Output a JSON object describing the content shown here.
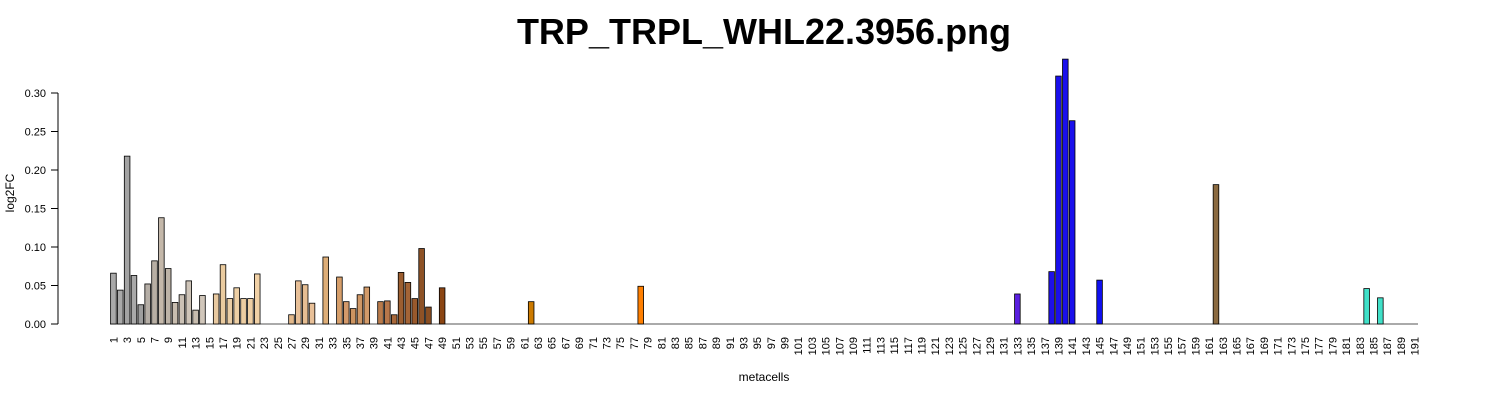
{
  "chart_data": {
    "type": "bar",
    "title": "TRP_TRPL_WHL22.3956.png",
    "xlabel": "metacells",
    "ylabel": "log2FC",
    "ylim": [
      0,
      0.34
    ],
    "yticks": [
      0.0,
      0.05,
      0.1,
      0.15,
      0.2,
      0.25,
      0.3
    ],
    "ytick_labels": [
      "0.00",
      "0.05",
      "0.10",
      "0.15",
      "0.20",
      "0.25",
      "0.30"
    ],
    "grid": false,
    "legend": "none",
    "n_categories": 191,
    "xtick_labels_every": 2,
    "bars": [
      {
        "x": 1,
        "value": 0.066,
        "color": "#A9A9A9"
      },
      {
        "x": 2,
        "value": 0.044,
        "color": "#A9A9A9"
      },
      {
        "x": 3,
        "value": 0.218,
        "color": "#A3A3A3"
      },
      {
        "x": 4,
        "value": 0.063,
        "color": "#A9A9A9"
      },
      {
        "x": 5,
        "value": 0.025,
        "color": "#9E9E9E"
      },
      {
        "x": 6,
        "value": 0.052,
        "color": "#B5AEA6"
      },
      {
        "x": 7,
        "value": 0.082,
        "color": "#B8AFA4"
      },
      {
        "x": 8,
        "value": 0.138,
        "color": "#C4B8AA"
      },
      {
        "x": 9,
        "value": 0.072,
        "color": "#BDB3A7"
      },
      {
        "x": 10,
        "value": 0.028,
        "color": "#C8BDAF"
      },
      {
        "x": 11,
        "value": 0.038,
        "color": "#CBC1B5"
      },
      {
        "x": 12,
        "value": 0.056,
        "color": "#CEC4B8"
      },
      {
        "x": 13,
        "value": 0.018,
        "color": "#C8BDAF"
      },
      {
        "x": 14,
        "value": 0.037,
        "color": "#D0C6BA"
      },
      {
        "x": 16,
        "value": 0.039,
        "color": "#E8C9A0"
      },
      {
        "x": 17,
        "value": 0.077,
        "color": "#EACB9F"
      },
      {
        "x": 18,
        "value": 0.033,
        "color": "#EACDA5"
      },
      {
        "x": 19,
        "value": 0.047,
        "color": "#EDCFA5"
      },
      {
        "x": 20,
        "value": 0.033,
        "color": "#EBCCA1"
      },
      {
        "x": 21,
        "value": 0.033,
        "color": "#EFCFA4"
      },
      {
        "x": 22,
        "value": 0.065,
        "color": "#F1D1A6"
      },
      {
        "x": 27,
        "value": 0.012,
        "color": "#E2B88A"
      },
      {
        "x": 28,
        "value": 0.056,
        "color": "#E8C098"
      },
      {
        "x": 29,
        "value": 0.051,
        "color": "#E5BD92"
      },
      {
        "x": 30,
        "value": 0.027,
        "color": "#E8C098"
      },
      {
        "x": 32,
        "value": 0.087,
        "color": "#DEAE78"
      },
      {
        "x": 34,
        "value": 0.061,
        "color": "#D69E6A"
      },
      {
        "x": 35,
        "value": 0.029,
        "color": "#D3996A"
      },
      {
        "x": 36,
        "value": 0.02,
        "color": "#CD9460"
      },
      {
        "x": 37,
        "value": 0.038,
        "color": "#D09866"
      },
      {
        "x": 38,
        "value": 0.048,
        "color": "#D39B6A"
      },
      {
        "x": 40,
        "value": 0.029,
        "color": "#B97A4A"
      },
      {
        "x": 41,
        "value": 0.03,
        "color": "#B8774A"
      },
      {
        "x": 42,
        "value": 0.012,
        "color": "#A8683A"
      },
      {
        "x": 43,
        "value": 0.067,
        "color": "#9C5E30"
      },
      {
        "x": 44,
        "value": 0.054,
        "color": "#A46436"
      },
      {
        "x": 45,
        "value": 0.033,
        "color": "#99592C"
      },
      {
        "x": 46,
        "value": 0.098,
        "color": "#8E5226"
      },
      {
        "x": 47,
        "value": 0.022,
        "color": "#8A4E22"
      },
      {
        "x": 49,
        "value": 0.047,
        "color": "#8B4513"
      },
      {
        "x": 62,
        "value": 0.029,
        "color": "#CC7A00"
      },
      {
        "x": 78,
        "value": 0.049,
        "color": "#FF7F00"
      },
      {
        "x": 133,
        "value": 0.039,
        "color": "#5A1FE0"
      },
      {
        "x": 138,
        "value": 0.068,
        "color": "#1E10E8"
      },
      {
        "x": 139,
        "value": 0.322,
        "color": "#1A10EC"
      },
      {
        "x": 140,
        "value": 0.344,
        "color": "#1A10EC"
      },
      {
        "x": 141,
        "value": 0.264,
        "color": "#1A10EC"
      },
      {
        "x": 145,
        "value": 0.057,
        "color": "#1010F0"
      },
      {
        "x": 162,
        "value": 0.181,
        "color": "#8B6A40"
      },
      {
        "x": 184,
        "value": 0.046,
        "color": "#40E0C8"
      },
      {
        "x": 186,
        "value": 0.034,
        "color": "#40E0C8"
      }
    ]
  }
}
